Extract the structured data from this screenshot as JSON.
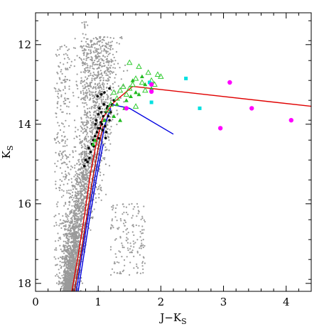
{
  "chart_data": {
    "type": "scatter",
    "xlabel": "J−K",
    "xlabel_sub": "S",
    "ylabel": "K",
    "ylabel_sub": "S",
    "xlim": [
      0,
      4.4
    ],
    "ylim": [
      18.2,
      11.2
    ],
    "x_inverted": false,
    "y_inverted": true,
    "grid": false,
    "x_ticks": [
      0,
      1,
      2,
      3,
      4
    ],
    "y_ticks": [
      12,
      14,
      16,
      18
    ],
    "colors": {
      "field": "#9a9a9a",
      "members": "#000000",
      "open_triangles": "#33cc33",
      "filled_triangles": "#22bb22",
      "squares": "#00e0e0",
      "circles": "#ff00ff",
      "red_line": "#e00000",
      "blue_line": "#0000e0",
      "dark_red_line": "#aa0000"
    },
    "field_population": {
      "description_only_for_script": false,
      "main_sequence_ridge": [
        [
          0.58,
          18.2
        ],
        [
          0.62,
          17.5
        ],
        [
          0.68,
          16.8
        ],
        [
          0.74,
          16.2
        ],
        [
          0.82,
          15.6
        ],
        [
          0.9,
          15.0
        ],
        [
          0.98,
          14.4
        ],
        [
          1.05,
          13.8
        ]
      ],
      "blue_edge": [
        [
          0.35,
          17.8
        ],
        [
          0.42,
          15.0
        ],
        [
          0.45,
          12.5
        ]
      ],
      "red_clump_cloud": [
        [
          1.3,
          16.6
        ],
        [
          1.6,
          17.2
        ]
      ]
    },
    "series": [
      {
        "marker": "dot-black",
        "points": [
          [
            1.02,
            13.6
          ],
          [
            1.05,
            13.7
          ],
          [
            1.08,
            13.8
          ],
          [
            1.1,
            13.9
          ],
          [
            1.12,
            13.7
          ],
          [
            1.06,
            14.0
          ],
          [
            1.0,
            14.1
          ],
          [
            0.95,
            14.3
          ],
          [
            0.9,
            14.5
          ],
          [
            0.98,
            14.2
          ],
          [
            1.03,
            14.1
          ],
          [
            1.09,
            13.5
          ],
          [
            1.14,
            13.6
          ],
          [
            1.16,
            13.8
          ],
          [
            1.18,
            13.9
          ],
          [
            1.2,
            13.7
          ],
          [
            1.11,
            14.05
          ],
          [
            0.88,
            14.7
          ],
          [
            0.85,
            14.6
          ],
          [
            0.8,
            14.9
          ],
          [
            0.92,
            14.4
          ],
          [
            1.04,
            13.95
          ],
          [
            1.07,
            14.15
          ],
          [
            1.13,
            14.2
          ],
          [
            1.0,
            13.75
          ],
          [
            0.97,
            13.9
          ],
          [
            1.15,
            13.55
          ],
          [
            1.22,
            13.5
          ],
          [
            1.25,
            13.4
          ],
          [
            1.01,
            14.35
          ],
          [
            0.93,
            14.55
          ],
          [
            0.99,
            13.3
          ],
          [
            1.05,
            13.25
          ],
          [
            1.1,
            13.2
          ],
          [
            1.18,
            13.1
          ],
          [
            0.83,
            14.95
          ],
          [
            0.78,
            15.05
          ],
          [
            0.86,
            14.85
          ],
          [
            1.12,
            14.35
          ],
          [
            0.96,
            14.0
          ]
        ]
      },
      {
        "marker": "open-triangle-green",
        "points": [
          [
            1.5,
            12.45
          ],
          [
            1.65,
            12.55
          ],
          [
            1.8,
            12.7
          ],
          [
            1.95,
            12.75
          ],
          [
            2.0,
            12.8
          ],
          [
            1.6,
            12.85
          ],
          [
            1.7,
            12.95
          ],
          [
            1.4,
            13.05
          ],
          [
            1.35,
            13.15
          ],
          [
            1.25,
            13.2
          ],
          [
            1.55,
            13.0
          ],
          [
            1.85,
            12.9
          ],
          [
            1.45,
            13.25
          ],
          [
            1.3,
            13.35
          ],
          [
            1.2,
            13.5
          ],
          [
            1.15,
            13.65
          ],
          [
            1.6,
            13.55
          ],
          [
            1.75,
            13.15
          ],
          [
            1.9,
            13.0
          ],
          [
            1.5,
            13.1
          ]
        ]
      },
      {
        "marker": "filled-triangle-green",
        "points": [
          [
            1.55,
            12.9
          ],
          [
            1.7,
            12.8
          ],
          [
            1.75,
            13.0
          ],
          [
            1.6,
            13.2
          ],
          [
            1.3,
            13.5
          ],
          [
            1.35,
            13.9
          ],
          [
            1.42,
            13.6
          ],
          [
            1.25,
            13.8
          ],
          [
            0.95,
            14.4
          ],
          [
            0.92,
            14.5
          ],
          [
            1.1,
            13.9
          ],
          [
            1.52,
            13.3
          ],
          [
            1.65,
            13.25
          ],
          [
            1.85,
            13.1
          ],
          [
            1.45,
            13.4
          ]
        ]
      },
      {
        "marker": "filled-square-cyan",
        "points": [
          [
            2.4,
            12.85
          ],
          [
            2.62,
            13.6
          ],
          [
            1.85,
            13.45
          ],
          [
            1.82,
            12.95
          ]
        ]
      },
      {
        "marker": "filled-circle-magenta",
        "points": [
          [
            1.45,
            13.6
          ],
          [
            1.85,
            13.0
          ],
          [
            1.85,
            13.18
          ],
          [
            3.1,
            12.95
          ],
          [
            3.45,
            13.6
          ],
          [
            4.08,
            13.9
          ],
          [
            2.95,
            14.1
          ]
        ]
      }
    ],
    "lines": [
      {
        "name": "",
        "color_key": "red_line",
        "points": [
          [
            1.55,
            13.05
          ],
          [
            4.4,
            13.55
          ]
        ]
      },
      {
        "name": "",
        "color_key": "red_line",
        "points": [
          [
            0.58,
            18.2
          ],
          [
            0.68,
            17.3
          ],
          [
            0.78,
            16.3
          ],
          [
            0.88,
            15.2
          ],
          [
            0.98,
            14.4
          ],
          [
            1.07,
            13.85
          ],
          [
            1.25,
            13.45
          ],
          [
            1.55,
            13.05
          ]
        ]
      },
      {
        "name": "",
        "color_key": "dark_red_line",
        "points": [
          [
            0.62,
            18.2
          ],
          [
            0.72,
            17.3
          ],
          [
            0.82,
            16.3
          ],
          [
            0.92,
            15.3
          ],
          [
            1.0,
            14.6
          ],
          [
            1.08,
            14.05
          ]
        ]
      },
      {
        "name": "",
        "color_key": "blue_line",
        "points": [
          [
            0.65,
            18.2
          ],
          [
            0.75,
            17.2
          ],
          [
            0.85,
            16.2
          ],
          [
            0.95,
            15.3
          ],
          [
            1.05,
            14.5
          ],
          [
            1.1,
            14.05
          ],
          [
            1.2,
            13.6
          ]
        ]
      },
      {
        "name": "",
        "color_key": "blue_line",
        "points": [
          [
            0.68,
            18.2
          ],
          [
            0.78,
            17.2
          ],
          [
            0.88,
            16.2
          ],
          [
            0.98,
            15.3
          ],
          [
            1.08,
            14.5
          ]
        ]
      },
      {
        "name": "",
        "color_key": "blue_line",
        "points": [
          [
            1.2,
            13.5
          ],
          [
            1.5,
            13.6
          ],
          [
            2.2,
            14.25
          ]
        ]
      }
    ]
  }
}
